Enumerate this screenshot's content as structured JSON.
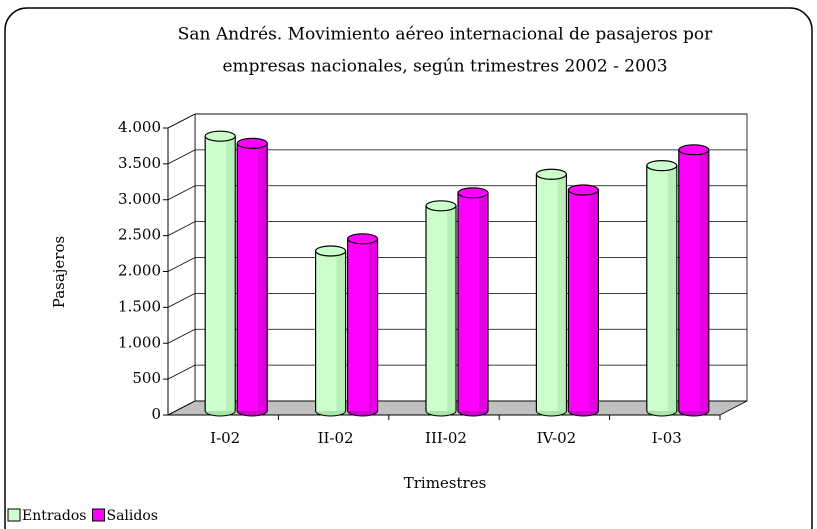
{
  "chart_data": {
    "type": "bar3d",
    "title": [
      "San Andrés. Movimiento aéreo internacional de pasajeros por",
      "empresas nacionales, según trimestres 2002 - 2003"
    ],
    "x_label": "Trimestres",
    "y_label": "Pasajeros",
    "categories": [
      "I-02",
      "II-02",
      "III-02",
      "IV-02",
      "I-03"
    ],
    "series": [
      {
        "name": "Entrados",
        "color": "#ccffcc",
        "values": [
          3830,
          2230,
          2860,
          3300,
          3420
        ]
      },
      {
        "name": "Salidos",
        "color": "#ff00ff",
        "values": [
          3730,
          2400,
          3040,
          3080,
          3640
        ]
      }
    ],
    "ylim": [
      0,
      4000
    ],
    "yticks": [
      0,
      500,
      {
        "value": 1000,
        "label": "1.000"
      },
      {
        "value": 1500,
        "label": "1.500"
      },
      {
        "value": 2000,
        "label": "2.000"
      },
      {
        "value": 2500,
        "label": "2.500"
      },
      {
        "value": 3000,
        "label": "3.000"
      },
      {
        "value": 3500,
        "label": "3.500"
      },
      {
        "value": 4000,
        "label": "4.000"
      }
    ],
    "grid": true,
    "legend": "bottom-left"
  }
}
